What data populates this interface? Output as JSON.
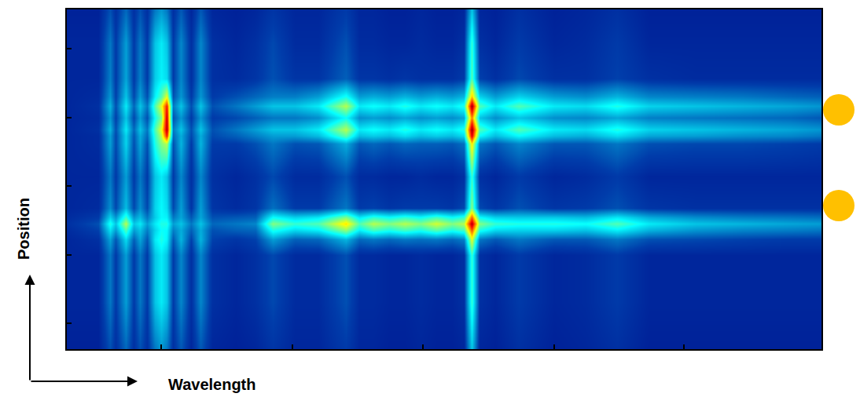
{
  "chart_data": {
    "type": "heatmap",
    "x_label": "Wavelength",
    "y_label": "Position",
    "tick_labels": false,
    "xlim": [
      0,
      960
    ],
    "ylim": [
      0,
      433
    ],
    "xticks": [
      120,
      287,
      453,
      620,
      785
    ],
    "yticks": [
      33,
      120,
      208,
      295,
      383
    ],
    "zlim": [
      0,
      1
    ],
    "x": [
      0,
      40,
      55,
      62,
      75,
      85,
      93,
      102,
      112,
      120,
      127,
      135,
      145,
      158,
      170,
      185,
      215,
      240,
      262,
      290,
      320,
      355,
      372,
      390,
      410,
      430,
      450,
      470,
      490,
      505,
      515,
      525,
      545,
      575,
      620,
      660,
      700,
      740,
      800,
      860,
      920,
      960
    ],
    "y": [
      0,
      60,
      120,
      140,
      152,
      160,
      168,
      180,
      220,
      262,
      272,
      280,
      295,
      310,
      322,
      345,
      390,
      433
    ],
    "z": [
      [
        0.07,
        0.07,
        0.15,
        0.1,
        0.18,
        0.1,
        0.15,
        0.1,
        0.2,
        0.24,
        0.2,
        0.1,
        0.16,
        0.08,
        0.16,
        0.08,
        0.07,
        0.08,
        0.11,
        0.08,
        0.08,
        0.12,
        0.08,
        0.08,
        0.07,
        0.07,
        0.08,
        0.07,
        0.07,
        0.08,
        0.3,
        0.08,
        0.07,
        0.1,
        0.07,
        0.08,
        0.1,
        0.07,
        0.07,
        0.07,
        0.07,
        0.07
      ],
      [
        0.08,
        0.08,
        0.2,
        0.12,
        0.25,
        0.12,
        0.2,
        0.12,
        0.3,
        0.35,
        0.3,
        0.12,
        0.22,
        0.1,
        0.22,
        0.1,
        0.08,
        0.1,
        0.14,
        0.09,
        0.09,
        0.15,
        0.09,
        0.09,
        0.08,
        0.08,
        0.09,
        0.08,
        0.08,
        0.1,
        0.42,
        0.1,
        0.08,
        0.12,
        0.08,
        0.09,
        0.12,
        0.08,
        0.08,
        0.08,
        0.08,
        0.08
      ],
      [
        0.08,
        0.08,
        0.2,
        0.12,
        0.25,
        0.12,
        0.2,
        0.12,
        0.3,
        0.35,
        0.3,
        0.12,
        0.22,
        0.1,
        0.22,
        0.1,
        0.08,
        0.1,
        0.14,
        0.09,
        0.09,
        0.15,
        0.09,
        0.09,
        0.08,
        0.08,
        0.09,
        0.08,
        0.08,
        0.1,
        0.42,
        0.1,
        0.08,
        0.12,
        0.08,
        0.09,
        0.12,
        0.08,
        0.08,
        0.08,
        0.08,
        0.08
      ],
      [
        0.08,
        0.1,
        0.26,
        0.16,
        0.33,
        0.17,
        0.26,
        0.16,
        0.35,
        0.4,
        0.36,
        0.16,
        0.28,
        0.13,
        0.28,
        0.13,
        0.11,
        0.13,
        0.25,
        0.17,
        0.18,
        0.28,
        0.18,
        0.2,
        0.18,
        0.2,
        0.19,
        0.2,
        0.18,
        0.21,
        0.6,
        0.2,
        0.16,
        0.2,
        0.16,
        0.16,
        0.2,
        0.15,
        0.14,
        0.13,
        0.12,
        0.12
      ],
      [
        0.09,
        0.13,
        0.34,
        0.25,
        0.45,
        0.25,
        0.3,
        0.21,
        0.32,
        0.38,
        0.37,
        0.21,
        0.27,
        0.17,
        0.27,
        0.15,
        0.17,
        0.18,
        0.4,
        0.33,
        0.36,
        0.52,
        0.36,
        0.44,
        0.4,
        0.44,
        0.4,
        0.46,
        0.4,
        0.44,
        0.8,
        0.4,
        0.33,
        0.32,
        0.32,
        0.3,
        0.36,
        0.28,
        0.24,
        0.22,
        0.21,
        0.2
      ],
      [
        0.1,
        0.15,
        0.4,
        0.3,
        0.55,
        0.3,
        0.35,
        0.25,
        0.35,
        0.4,
        0.4,
        0.25,
        0.3,
        0.2,
        0.3,
        0.18,
        0.2,
        0.22,
        0.5,
        0.42,
        0.45,
        0.65,
        0.45,
        0.55,
        0.5,
        0.55,
        0.5,
        0.58,
        0.5,
        0.55,
        0.95,
        0.5,
        0.42,
        0.4,
        0.4,
        0.38,
        0.45,
        0.35,
        0.3,
        0.28,
        0.26,
        0.25
      ],
      [
        0.09,
        0.12,
        0.32,
        0.24,
        0.43,
        0.24,
        0.29,
        0.2,
        0.31,
        0.37,
        0.36,
        0.2,
        0.26,
        0.16,
        0.26,
        0.15,
        0.16,
        0.17,
        0.38,
        0.32,
        0.35,
        0.5,
        0.35,
        0.42,
        0.38,
        0.42,
        0.38,
        0.44,
        0.38,
        0.42,
        0.78,
        0.38,
        0.32,
        0.31,
        0.31,
        0.29,
        0.35,
        0.27,
        0.23,
        0.21,
        0.2,
        0.19
      ],
      [
        0.08,
        0.09,
        0.23,
        0.14,
        0.29,
        0.14,
        0.23,
        0.14,
        0.32,
        0.37,
        0.33,
        0.14,
        0.25,
        0.11,
        0.25,
        0.11,
        0.09,
        0.11,
        0.19,
        0.12,
        0.12,
        0.2,
        0.12,
        0.13,
        0.11,
        0.12,
        0.12,
        0.12,
        0.11,
        0.14,
        0.5,
        0.14,
        0.11,
        0.15,
        0.11,
        0.12,
        0.15,
        0.11,
        0.1,
        0.1,
        0.1,
        0.1
      ],
      [
        0.08,
        0.08,
        0.2,
        0.12,
        0.25,
        0.12,
        0.2,
        0.12,
        0.3,
        0.35,
        0.3,
        0.12,
        0.22,
        0.1,
        0.22,
        0.1,
        0.08,
        0.1,
        0.14,
        0.09,
        0.09,
        0.15,
        0.09,
        0.09,
        0.08,
        0.08,
        0.09,
        0.08,
        0.08,
        0.1,
        0.42,
        0.1,
        0.08,
        0.12,
        0.08,
        0.09,
        0.12,
        0.08,
        0.08,
        0.08,
        0.08,
        0.08
      ],
      [
        0.08,
        0.09,
        0.25,
        0.14,
        0.32,
        0.15,
        0.26,
        0.15,
        0.4,
        0.5,
        0.55,
        0.15,
        0.28,
        0.12,
        0.28,
        0.12,
        0.12,
        0.15,
        0.2,
        0.15,
        0.16,
        0.27,
        0.16,
        0.18,
        0.16,
        0.18,
        0.17,
        0.17,
        0.16,
        0.19,
        0.65,
        0.2,
        0.16,
        0.22,
        0.16,
        0.16,
        0.2,
        0.15,
        0.14,
        0.14,
        0.13,
        0.12
      ],
      [
        0.08,
        0.09,
        0.25,
        0.14,
        0.32,
        0.16,
        0.27,
        0.18,
        0.42,
        0.55,
        0.85,
        0.18,
        0.27,
        0.14,
        0.27,
        0.14,
        0.17,
        0.21,
        0.25,
        0.25,
        0.29,
        0.46,
        0.29,
        0.31,
        0.29,
        0.33,
        0.29,
        0.31,
        0.29,
        0.33,
        0.9,
        0.37,
        0.29,
        0.37,
        0.29,
        0.27,
        0.33,
        0.26,
        0.25,
        0.23,
        0.22,
        0.2
      ],
      [
        0.08,
        0.1,
        0.28,
        0.15,
        0.35,
        0.18,
        0.3,
        0.2,
        0.45,
        0.6,
        0.95,
        0.2,
        0.3,
        0.15,
        0.3,
        0.15,
        0.2,
        0.25,
        0.3,
        0.3,
        0.35,
        0.55,
        0.35,
        0.38,
        0.35,
        0.4,
        0.35,
        0.38,
        0.35,
        0.4,
        0.97,
        0.45,
        0.35,
        0.45,
        0.35,
        0.33,
        0.4,
        0.32,
        0.3,
        0.28,
        0.26,
        0.24
      ],
      [
        0.08,
        0.09,
        0.24,
        0.13,
        0.3,
        0.14,
        0.25,
        0.15,
        0.38,
        0.5,
        0.92,
        0.15,
        0.24,
        0.12,
        0.24,
        0.12,
        0.14,
        0.17,
        0.2,
        0.2,
        0.23,
        0.38,
        0.23,
        0.25,
        0.23,
        0.26,
        0.23,
        0.25,
        0.23,
        0.26,
        0.75,
        0.3,
        0.23,
        0.3,
        0.23,
        0.22,
        0.26,
        0.21,
        0.2,
        0.19,
        0.18,
        0.16
      ],
      [
        0.08,
        0.1,
        0.28,
        0.15,
        0.35,
        0.18,
        0.3,
        0.2,
        0.45,
        0.6,
        0.85,
        0.2,
        0.3,
        0.15,
        0.3,
        0.15,
        0.2,
        0.25,
        0.3,
        0.3,
        0.35,
        0.55,
        0.35,
        0.38,
        0.35,
        0.4,
        0.35,
        0.38,
        0.35,
        0.4,
        0.97,
        0.45,
        0.35,
        0.45,
        0.35,
        0.33,
        0.4,
        0.32,
        0.3,
        0.28,
        0.26,
        0.24
      ],
      [
        0.08,
        0.09,
        0.24,
        0.13,
        0.3,
        0.14,
        0.25,
        0.15,
        0.36,
        0.45,
        0.6,
        0.15,
        0.24,
        0.12,
        0.24,
        0.12,
        0.15,
        0.18,
        0.21,
        0.21,
        0.25,
        0.39,
        0.25,
        0.27,
        0.25,
        0.28,
        0.25,
        0.27,
        0.25,
        0.28,
        0.68,
        0.32,
        0.25,
        0.32,
        0.25,
        0.23,
        0.28,
        0.22,
        0.21,
        0.2,
        0.18,
        0.17
      ],
      [
        0.08,
        0.08,
        0.21,
        0.12,
        0.26,
        0.12,
        0.21,
        0.12,
        0.31,
        0.36,
        0.33,
        0.12,
        0.22,
        0.1,
        0.22,
        0.1,
        0.09,
        0.11,
        0.15,
        0.11,
        0.11,
        0.17,
        0.11,
        0.11,
        0.1,
        0.11,
        0.1,
        0.1,
        0.1,
        0.12,
        0.45,
        0.13,
        0.1,
        0.14,
        0.1,
        0.1,
        0.13,
        0.1,
        0.09,
        0.09,
        0.09,
        0.09
      ],
      [
        0.08,
        0.08,
        0.2,
        0.12,
        0.25,
        0.12,
        0.2,
        0.12,
        0.3,
        0.35,
        0.3,
        0.12,
        0.22,
        0.1,
        0.22,
        0.1,
        0.08,
        0.1,
        0.14,
        0.09,
        0.09,
        0.15,
        0.09,
        0.09,
        0.08,
        0.08,
        0.09,
        0.08,
        0.08,
        0.1,
        0.42,
        0.1,
        0.08,
        0.12,
        0.08,
        0.09,
        0.12,
        0.08,
        0.08,
        0.08,
        0.08,
        0.08
      ],
      [
        0.07,
        0.07,
        0.15,
        0.1,
        0.18,
        0.1,
        0.15,
        0.1,
        0.2,
        0.24,
        0.2,
        0.1,
        0.16,
        0.08,
        0.16,
        0.08,
        0.07,
        0.08,
        0.11,
        0.08,
        0.08,
        0.12,
        0.08,
        0.08,
        0.07,
        0.07,
        0.08,
        0.07,
        0.07,
        0.08,
        0.3,
        0.08,
        0.07,
        0.1,
        0.07,
        0.08,
        0.1,
        0.07,
        0.07,
        0.07,
        0.07,
        0.07
      ]
    ]
  }
}
